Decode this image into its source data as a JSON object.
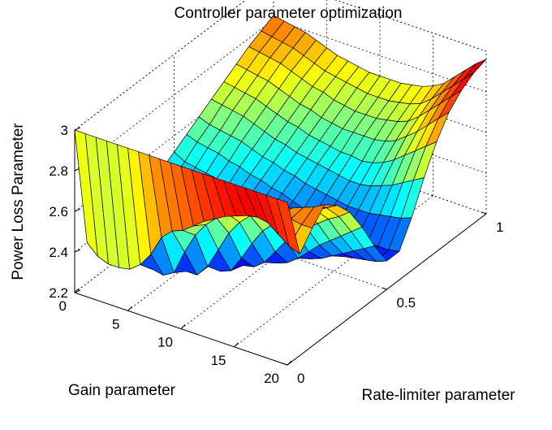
{
  "chart_data": {
    "type": "surface",
    "title": "Controller parameter optimization",
    "xlabel": "Gain parameter",
    "ylabel": "Rate-limiter parameter",
    "zlabel": "Power Loss Parameter",
    "x_ticks": [
      "0",
      "5",
      "10",
      "15",
      "20"
    ],
    "y_ticks": [
      "0",
      "0.5",
      "1"
    ],
    "z_ticks": [
      "2.2",
      "2.4",
      "2.6",
      "2.8",
      "3"
    ],
    "xlim": [
      0,
      20
    ],
    "ylim": [
      0,
      1
    ],
    "zlim": [
      2.2,
      3.0
    ],
    "colormap": "jet",
    "color_limits": [
      2.2,
      3.0
    ],
    "grid": true,
    "gain_values": [
      0,
      1,
      2,
      3,
      4,
      5,
      6,
      7,
      8,
      9,
      10,
      11,
      12,
      13,
      14,
      15,
      16,
      17,
      18,
      19,
      20
    ],
    "rate_limiter_values": [
      0,
      0.0625,
      0.125,
      0.1875,
      0.25,
      0.3125,
      0.375,
      0.4375,
      0.5,
      0.5625,
      0.625,
      0.6875,
      0.75,
      0.8125,
      0.875,
      0.9375,
      1
    ],
    "power_loss": [
      [
        3.0,
        2.4,
        2.4,
        2.41,
        2.42,
        2.43,
        2.45,
        2.48,
        2.52,
        2.56,
        2.6,
        2.64,
        2.68,
        2.72,
        2.76,
        2.79,
        2.82
      ],
      [
        3.0,
        2.35,
        2.36,
        2.37,
        2.38,
        2.4,
        2.42,
        2.45,
        2.49,
        2.54,
        2.58,
        2.63,
        2.67,
        2.71,
        2.75,
        2.78,
        2.81
      ],
      [
        3.0,
        2.33,
        2.34,
        2.35,
        2.36,
        2.38,
        2.41,
        2.44,
        2.48,
        2.53,
        2.57,
        2.62,
        2.66,
        2.7,
        2.74,
        2.77,
        2.8
      ],
      [
        3.0,
        2.33,
        2.33,
        2.34,
        2.35,
        2.37,
        2.4,
        2.43,
        2.47,
        2.52,
        2.56,
        2.61,
        2.65,
        2.69,
        2.73,
        2.76,
        2.79
      ],
      [
        3.0,
        2.34,
        2.32,
        2.33,
        2.34,
        2.36,
        2.39,
        2.42,
        2.46,
        2.5,
        2.55,
        2.59,
        2.63,
        2.67,
        2.71,
        2.74,
        2.77
      ],
      [
        3.0,
        2.38,
        2.31,
        2.32,
        2.33,
        2.35,
        2.38,
        2.41,
        2.44,
        2.49,
        2.53,
        2.57,
        2.61,
        2.65,
        2.69,
        2.72,
        2.75
      ],
      [
        3.0,
        2.45,
        2.3,
        2.31,
        2.32,
        2.34,
        2.37,
        2.4,
        2.43,
        2.47,
        2.51,
        2.55,
        2.59,
        2.63,
        2.67,
        2.7,
        2.73
      ],
      [
        3.0,
        2.55,
        2.33,
        2.29,
        2.31,
        2.33,
        2.36,
        2.39,
        2.42,
        2.46,
        2.5,
        2.54,
        2.58,
        2.62,
        2.66,
        2.69,
        2.72
      ],
      [
        3.0,
        2.6,
        2.45,
        2.29,
        2.29,
        2.31,
        2.34,
        2.37,
        2.4,
        2.44,
        2.48,
        2.52,
        2.56,
        2.6,
        2.64,
        2.68,
        2.71
      ],
      [
        3.0,
        2.62,
        2.55,
        2.35,
        2.28,
        2.29,
        2.32,
        2.35,
        2.39,
        2.43,
        2.47,
        2.51,
        2.55,
        2.59,
        2.63,
        2.67,
        2.7
      ],
      [
        3.0,
        2.66,
        2.62,
        2.45,
        2.3,
        2.28,
        2.3,
        2.33,
        2.37,
        2.41,
        2.45,
        2.5,
        2.54,
        2.58,
        2.62,
        2.66,
        2.7
      ],
      [
        3.0,
        2.7,
        2.67,
        2.55,
        2.38,
        2.29,
        2.28,
        2.31,
        2.35,
        2.39,
        2.44,
        2.49,
        2.53,
        2.58,
        2.62,
        2.66,
        2.7
      ],
      [
        3.0,
        2.73,
        2.71,
        2.62,
        2.47,
        2.33,
        2.28,
        2.29,
        2.33,
        2.38,
        2.43,
        2.48,
        2.53,
        2.58,
        2.62,
        2.66,
        2.7
      ],
      [
        3.0,
        2.76,
        2.74,
        2.67,
        2.55,
        2.4,
        2.3,
        2.28,
        2.31,
        2.36,
        2.42,
        2.47,
        2.52,
        2.58,
        2.63,
        2.67,
        2.71
      ],
      [
        3.0,
        2.78,
        2.76,
        2.7,
        2.6,
        2.47,
        2.34,
        2.29,
        2.3,
        2.35,
        2.41,
        2.47,
        2.53,
        2.59,
        2.64,
        2.68,
        2.72
      ],
      [
        3.0,
        2.8,
        2.78,
        2.73,
        2.64,
        2.52,
        2.39,
        2.31,
        2.29,
        2.34,
        2.41,
        2.48,
        2.55,
        2.61,
        2.66,
        2.7,
        2.74
      ],
      [
        3.0,
        2.81,
        2.8,
        2.76,
        2.68,
        2.57,
        2.44,
        2.34,
        2.29,
        2.33,
        2.41,
        2.5,
        2.58,
        2.65,
        2.7,
        2.74,
        2.77
      ],
      [
        3.0,
        2.8,
        2.8,
        2.78,
        2.71,
        2.61,
        2.48,
        2.37,
        2.3,
        2.33,
        2.42,
        2.52,
        2.62,
        2.69,
        2.75,
        2.79,
        2.82
      ],
      [
        3.0,
        2.76,
        2.79,
        2.8,
        2.74,
        2.65,
        2.52,
        2.4,
        2.31,
        2.33,
        2.43,
        2.55,
        2.66,
        2.74,
        2.8,
        2.84,
        2.87
      ],
      [
        3.0,
        2.72,
        2.78,
        2.82,
        2.77,
        2.68,
        2.56,
        2.43,
        2.32,
        2.33,
        2.44,
        2.58,
        2.7,
        2.79,
        2.85,
        2.89,
        2.92
      ],
      [
        3.0,
        2.7,
        2.78,
        2.85,
        2.8,
        2.72,
        2.6,
        2.46,
        2.34,
        2.34,
        2.46,
        2.61,
        2.74,
        2.84,
        2.9,
        2.94,
        2.96
      ]
    ]
  }
}
